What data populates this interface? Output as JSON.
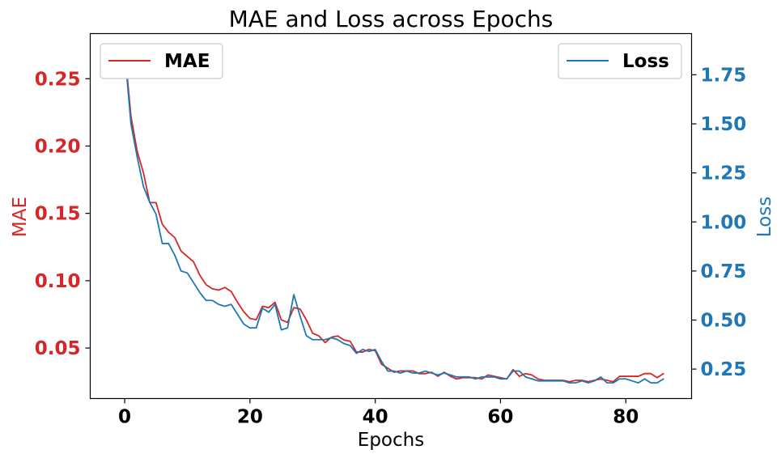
{
  "chart_data": {
    "type": "line",
    "title": "MAE and Loss across Epochs",
    "xlabel": "Epochs",
    "xlim": [
      -5.5,
      90.5
    ],
    "xticks": [
      0,
      20,
      40,
      60,
      80
    ],
    "left_axis": {
      "label": "MAE",
      "color": "#d62728",
      "ylim": [
        0.0125,
        0.2835
      ],
      "ticks": [
        "0.05",
        "0.10",
        "0.15",
        "0.20",
        "0.25"
      ]
    },
    "right_axis": {
      "label": "Loss",
      "color": "#1f77b4",
      "ylim": [
        0.1,
        1.96
      ],
      "ticks": [
        "0.25",
        "0.50",
        "0.75",
        "1.00",
        "1.25",
        "1.50",
        "1.75"
      ]
    },
    "legend": {
      "mae": {
        "position": "upper-left"
      },
      "loss": {
        "position": "upper-right"
      }
    },
    "series": [
      {
        "name": "MAE",
        "axis": "left",
        "color": "#d62728",
        "x": [
          0,
          1,
          2,
          3,
          4,
          5,
          6,
          7,
          8,
          9,
          10,
          11,
          12,
          13,
          14,
          15,
          16,
          17,
          18,
          19,
          20,
          21,
          22,
          23,
          24,
          25,
          26,
          27,
          28,
          29,
          30,
          31,
          32,
          33,
          34,
          35,
          36,
          37,
          38,
          39,
          40,
          41,
          42,
          43,
          44,
          45,
          46,
          47,
          48,
          49,
          50,
          51,
          52,
          53,
          54,
          55,
          56,
          57,
          58,
          59,
          60,
          61,
          62,
          63,
          64,
          65,
          66,
          67,
          68,
          69,
          70,
          71,
          72,
          73,
          74,
          75,
          76,
          77,
          78,
          79,
          80,
          81,
          82,
          83,
          84,
          85,
          86
        ],
        "values": [
          0.272,
          0.222,
          0.196,
          0.18,
          0.158,
          0.158,
          0.142,
          0.136,
          0.132,
          0.122,
          0.118,
          0.114,
          0.104,
          0.097,
          0.094,
          0.093,
          0.095,
          0.092,
          0.084,
          0.077,
          0.072,
          0.071,
          0.081,
          0.08,
          0.084,
          0.071,
          0.069,
          0.08,
          0.079,
          0.071,
          0.061,
          0.059,
          0.054,
          0.058,
          0.059,
          0.056,
          0.055,
          0.047,
          0.047,
          0.049,
          0.048,
          0.038,
          0.035,
          0.032,
          0.033,
          0.033,
          0.033,
          0.031,
          0.031,
          0.032,
          0.029,
          0.032,
          0.029,
          0.027,
          0.028,
          0.028,
          0.028,
          0.027,
          0.03,
          0.029,
          0.028,
          0.027,
          0.034,
          0.029,
          0.031,
          0.03,
          0.027,
          0.026,
          0.026,
          0.026,
          0.026,
          0.025,
          0.026,
          0.026,
          0.025,
          0.026,
          0.027,
          0.026,
          0.025,
          0.029,
          0.029,
          0.029,
          0.029,
          0.031,
          0.031,
          0.028,
          0.031
        ]
      },
      {
        "name": "Loss",
        "axis": "right",
        "color": "#1f77b4",
        "x": [
          0,
          1,
          2,
          3,
          4,
          5,
          6,
          7,
          8,
          9,
          10,
          11,
          12,
          13,
          14,
          15,
          16,
          17,
          18,
          19,
          20,
          21,
          22,
          23,
          24,
          25,
          26,
          27,
          28,
          29,
          30,
          31,
          32,
          33,
          34,
          35,
          36,
          37,
          38,
          39,
          40,
          41,
          42,
          43,
          44,
          45,
          46,
          47,
          48,
          49,
          50,
          51,
          52,
          53,
          54,
          55,
          56,
          57,
          58,
          59,
          60,
          61,
          62,
          63,
          64,
          65,
          66,
          67,
          68,
          69,
          70,
          71,
          72,
          73,
          74,
          75,
          76,
          77,
          78,
          79,
          80,
          81,
          82,
          83,
          84,
          85,
          86
        ],
        "values": [
          1.87,
          1.5,
          1.33,
          1.18,
          1.1,
          1.04,
          0.89,
          0.89,
          0.83,
          0.75,
          0.74,
          0.69,
          0.64,
          0.6,
          0.6,
          0.58,
          0.57,
          0.58,
          0.53,
          0.48,
          0.46,
          0.46,
          0.56,
          0.54,
          0.58,
          0.45,
          0.46,
          0.63,
          0.52,
          0.42,
          0.4,
          0.4,
          0.4,
          0.41,
          0.4,
          0.38,
          0.37,
          0.33,
          0.35,
          0.34,
          0.35,
          0.29,
          0.24,
          0.24,
          0.23,
          0.24,
          0.23,
          0.23,
          0.24,
          0.23,
          0.22,
          0.23,
          0.22,
          0.21,
          0.21,
          0.21,
          0.2,
          0.21,
          0.21,
          0.21,
          0.2,
          0.2,
          0.24,
          0.24,
          0.21,
          0.2,
          0.19,
          0.19,
          0.19,
          0.19,
          0.19,
          0.18,
          0.18,
          0.19,
          0.18,
          0.19,
          0.21,
          0.18,
          0.18,
          0.2,
          0.2,
          0.19,
          0.18,
          0.2,
          0.18,
          0.18,
          0.2
        ]
      }
    ]
  }
}
